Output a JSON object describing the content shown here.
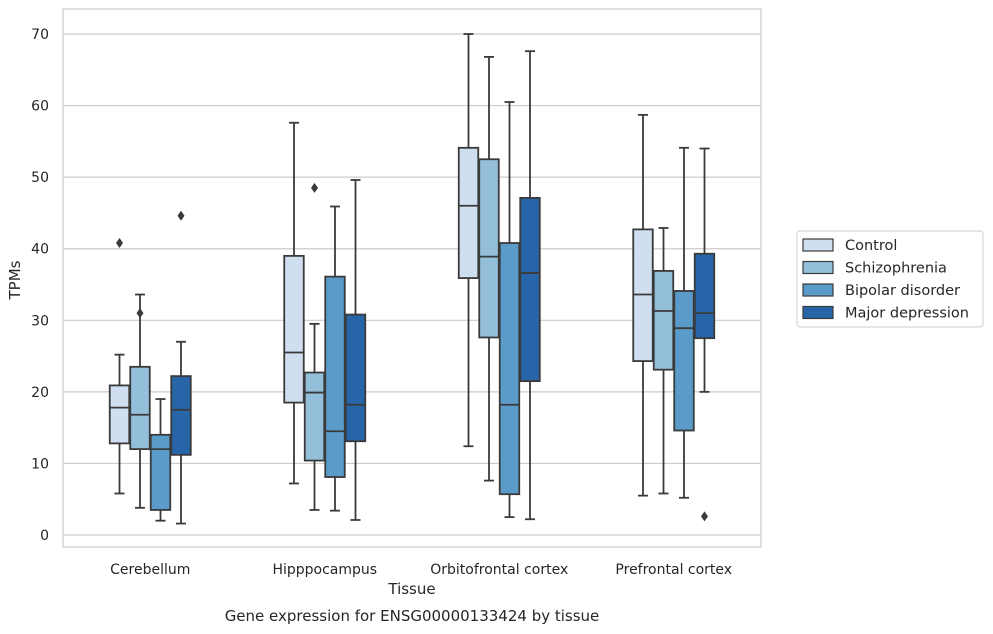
{
  "chart_data": {
    "type": "box",
    "xlabel": "Tissue",
    "ylabel": "TPMs",
    "caption": "Gene expression for ENSG00000133424 by tissue",
    "ylim": [
      -1.5,
      73.5
    ],
    "yticks": [
      0,
      10,
      20,
      30,
      40,
      50,
      60,
      70
    ],
    "grid": "horizontal",
    "legend_position": "right",
    "categories": [
      "Cerebellum",
      "Hipppocampus",
      "Orbitofrontal cortex",
      "Prefrontal cortex"
    ],
    "series": [
      {
        "name": "Control",
        "color": "#cfdff0",
        "boxes": [
          {
            "whislo": 5.8,
            "q1": 12.8,
            "med": 17.8,
            "q3": 20.9,
            "whishi": 25.2,
            "fliers": [
              40.8
            ]
          },
          {
            "whislo": 7.2,
            "q1": 18.5,
            "med": 25.5,
            "q3": 39.0,
            "whishi": 57.6,
            "fliers": []
          },
          {
            "whislo": 12.4,
            "q1": 35.9,
            "med": 46.0,
            "q3": 54.1,
            "whishi": 70.0,
            "fliers": []
          },
          {
            "whislo": 5.5,
            "q1": 24.3,
            "med": 33.6,
            "q3": 42.7,
            "whishi": 58.7,
            "fliers": []
          }
        ]
      },
      {
        "name": "Schizophrenia",
        "color": "#94bfdb",
        "boxes": [
          {
            "whislo": 3.8,
            "q1": 12.0,
            "med": 16.8,
            "q3": 23.5,
            "whishi": 33.6,
            "fliers": [
              31.0
            ]
          },
          {
            "whislo": 3.5,
            "q1": 10.4,
            "med": 19.9,
            "q3": 22.7,
            "whishi": 29.5,
            "fliers": [
              48.5
            ]
          },
          {
            "whislo": 7.6,
            "q1": 27.6,
            "med": 38.9,
            "q3": 52.5,
            "whishi": 66.8,
            "fliers": []
          },
          {
            "whislo": 5.8,
            "q1": 23.1,
            "med": 31.3,
            "q3": 36.9,
            "whishi": 42.9,
            "fliers": []
          }
        ]
      },
      {
        "name": "Bipolar disorder",
        "color": "#5a9bc9",
        "boxes": [
          {
            "whislo": 2.0,
            "q1": 3.5,
            "med": 12.0,
            "q3": 14.0,
            "whishi": 19.0,
            "fliers": []
          },
          {
            "whislo": 3.4,
            "q1": 8.1,
            "med": 14.5,
            "q3": 36.1,
            "whishi": 45.9,
            "fliers": []
          },
          {
            "whislo": 2.5,
            "q1": 5.7,
            "med": 18.2,
            "q3": 40.8,
            "whishi": 60.5,
            "fliers": []
          },
          {
            "whislo": 5.2,
            "q1": 14.6,
            "med": 28.9,
            "q3": 34.1,
            "whishi": 54.1,
            "fliers": []
          }
        ]
      },
      {
        "name": "Major depression",
        "color": "#2765a8",
        "boxes": [
          {
            "whislo": 1.6,
            "q1": 11.2,
            "med": 17.5,
            "q3": 22.2,
            "whishi": 27.0,
            "fliers": [
              44.6
            ]
          },
          {
            "whislo": 2.1,
            "q1": 13.1,
            "med": 18.2,
            "q3": 30.8,
            "whishi": 49.6,
            "fliers": []
          },
          {
            "whislo": 2.2,
            "q1": 21.5,
            "med": 36.6,
            "q3": 47.1,
            "whishi": 67.6,
            "fliers": []
          },
          {
            "whislo": 20.0,
            "q1": 27.5,
            "med": 31.0,
            "q3": 39.3,
            "whishi": 54.0,
            "fliers": [
              2.6
            ]
          }
        ]
      }
    ]
  }
}
